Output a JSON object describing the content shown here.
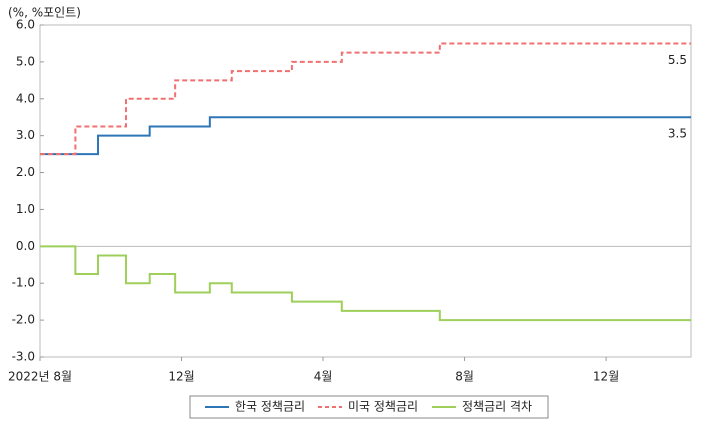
{
  "chart_data": {
    "type": "line",
    "y_axis_label": "(%, %포인트)",
    "xlim": [
      0,
      18.4
    ],
    "xticks": [
      {
        "value": 0,
        "label": "2022년 8월"
      },
      {
        "value": 4,
        "label": "12월"
      },
      {
        "value": 8,
        "label": "4월"
      },
      {
        "value": 12,
        "label": "8월"
      },
      {
        "value": 16,
        "label": "12월"
      }
    ],
    "ylim": [
      -3,
      6
    ],
    "yticks": [
      {
        "value": 6,
        "label": "6.0"
      },
      {
        "value": 5,
        "label": "5.0"
      },
      {
        "value": 4,
        "label": "4.0"
      },
      {
        "value": 3,
        "label": "3.0"
      },
      {
        "value": 2,
        "label": "2.0"
      },
      {
        "value": 1,
        "label": "1.0"
      },
      {
        "value": 0,
        "label": "0.0"
      },
      {
        "value": -1,
        "label": "-1.0"
      },
      {
        "value": -2,
        "label": "-2.0"
      },
      {
        "value": -3,
        "label": "-3.0"
      }
    ],
    "step": true,
    "series": [
      {
        "name": "한국 정책금리",
        "color": "#2e75b6",
        "dash": false,
        "x": [
          0,
          1.64,
          3.1,
          4.8,
          18.4
        ],
        "values": [
          2.5,
          3.0,
          3.25,
          3.5,
          3.5
        ]
      },
      {
        "name": "미국 정책금리",
        "color": "#f07070",
        "dash": true,
        "x": [
          0,
          1.0,
          2.43,
          3.82,
          5.42,
          7.12,
          8.53,
          11.3,
          18.4
        ],
        "values": [
          2.5,
          3.25,
          4.0,
          4.5,
          4.75,
          5.0,
          5.25,
          5.5,
          5.5
        ]
      },
      {
        "name": "정책금리 격차",
        "color": "#9dcf5a",
        "dash": false,
        "x": [
          0,
          1.0,
          1.64,
          2.43,
          3.1,
          3.82,
          4.8,
          5.42,
          7.12,
          8.53,
          11.3,
          18.4
        ],
        "values": [
          0,
          -0.75,
          -0.25,
          -1.0,
          -0.75,
          -1.25,
          -1.0,
          -1.25,
          -1.5,
          -1.75,
          -2.0,
          -2.0
        ]
      }
    ],
    "end_labels": [
      {
        "series": 1,
        "text": "5.5"
      },
      {
        "series": 0,
        "text": "3.5"
      }
    ]
  }
}
